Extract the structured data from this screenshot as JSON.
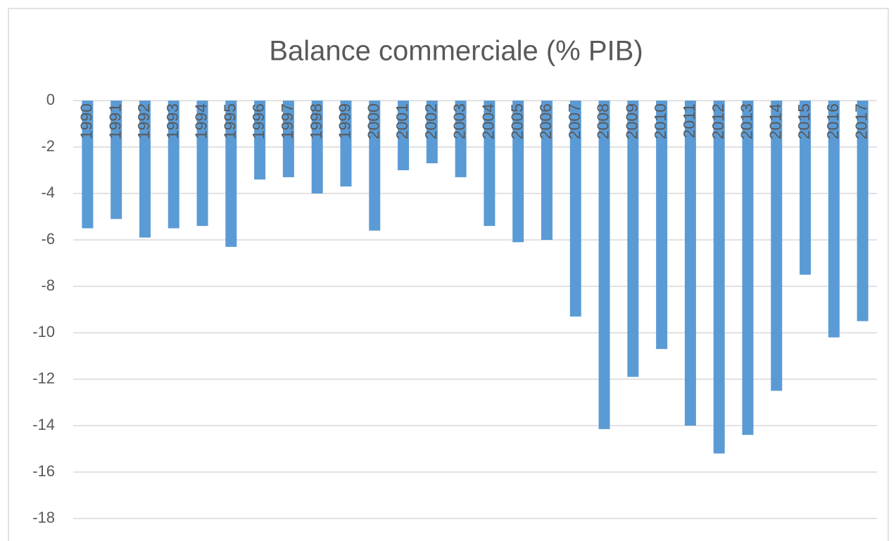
{
  "chart_data": {
    "type": "bar",
    "title": "Balance commerciale (% PIB)",
    "categories": [
      "1990",
      "1991",
      "1992",
      "1993",
      "1994",
      "1995",
      "1996",
      "1997",
      "1998",
      "1999",
      "2000",
      "2001",
      "2002",
      "2003",
      "2004",
      "2005",
      "2006",
      "2007",
      "2008",
      "2009",
      "2010",
      "2011",
      "2012",
      "2013",
      "2014",
      "2015",
      "2016",
      "2017"
    ],
    "values": [
      -5.5,
      -5.1,
      -5.9,
      -5.5,
      -5.4,
      -6.3,
      -3.4,
      -3.3,
      -4.0,
      -3.7,
      -5.6,
      -3.0,
      -2.7,
      -3.3,
      -5.4,
      -6.1,
      -6.0,
      -9.3,
      -14.15,
      -11.9,
      -10.7,
      -14.0,
      -15.2,
      -14.4,
      -12.5,
      -7.5,
      -10.2,
      -9.5
    ],
    "color": "#5b9bd5",
    "ylim": [
      -18,
      0
    ],
    "yticks": [
      0,
      -2,
      -4,
      -6,
      -8,
      -10,
      -12,
      -14,
      -16,
      -18
    ],
    "grid": true
  }
}
